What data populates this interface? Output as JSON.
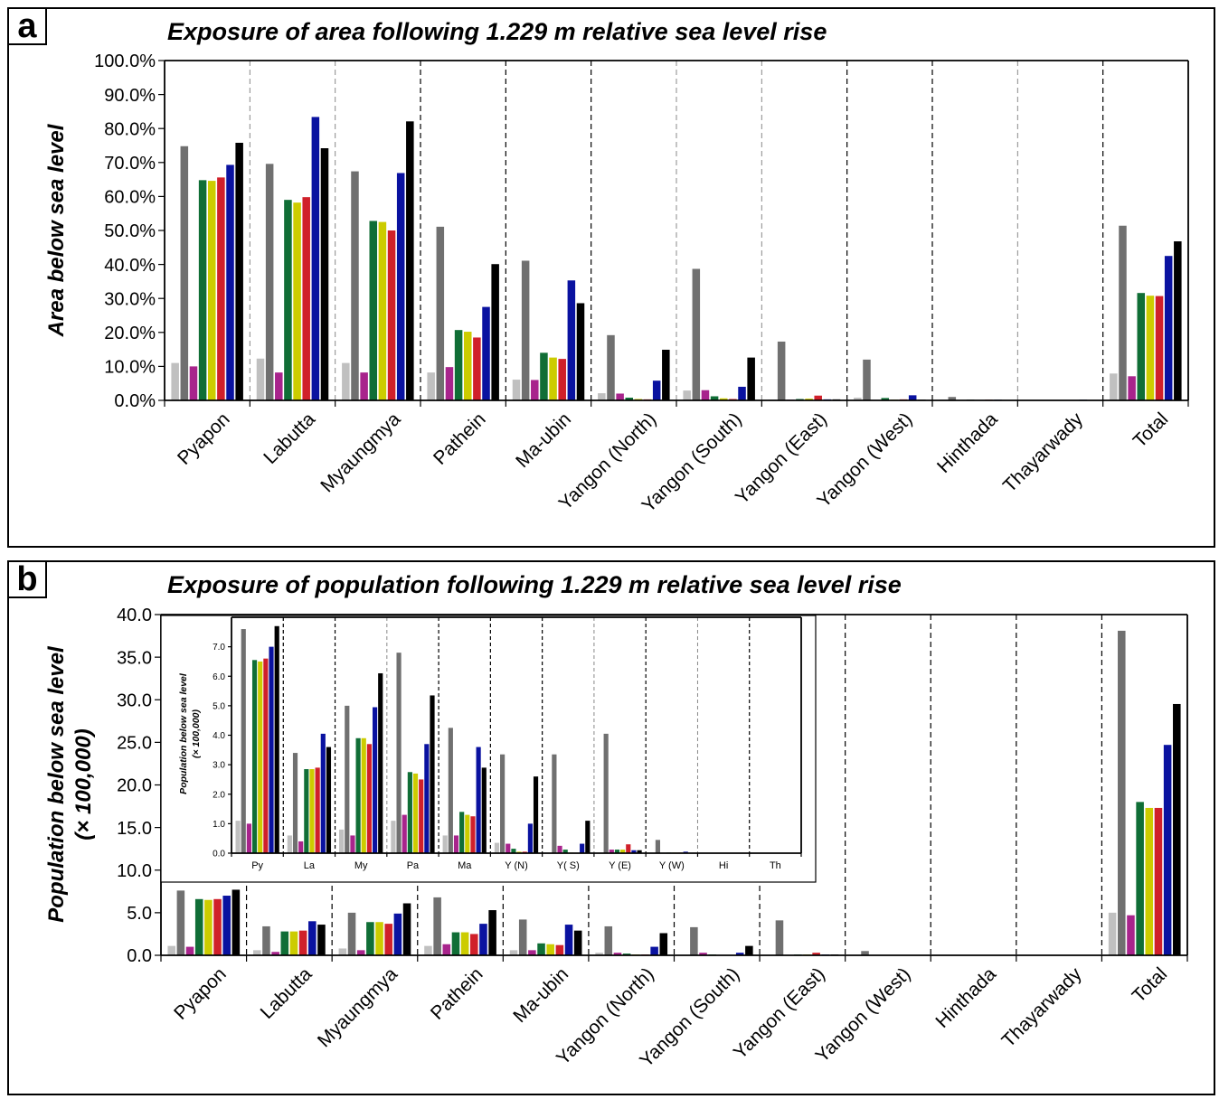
{
  "chart_data": [
    {
      "panel_label": "a",
      "type": "bar",
      "title": "Exposure of area following 1.229 m relative sea level rise",
      "xlabel": "",
      "ylabel": "Area below sea level",
      "ylim": [
        0,
        100
      ],
      "ytick_labels": [
        "0.0%",
        "10.0%",
        "20.0%",
        "30.0%",
        "40.0%",
        "50.0%",
        "60.0%",
        "70.0%",
        "80.0%",
        "90.0%",
        "100.0%"
      ],
      "categories": [
        "Pyapon",
        "Labutta",
        "Myaungmya",
        "Pathein",
        "Ma-ubin",
        "Yangon (North)",
        "Yangon (South)",
        "Yangon (East)",
        "Yangon (West)",
        "Hinthada",
        "Thayarwady",
        "Total"
      ],
      "series": [
        {
          "color": "#c0c0c0",
          "values": [
            11.0,
            12.3,
            11.0,
            8.2,
            6.1,
            2.1,
            2.9,
            0.2,
            0.8,
            0.2,
            0.0,
            7.9
          ]
        },
        {
          "color": "#707070",
          "values": [
            74.8,
            69.6,
            67.4,
            51.1,
            41.1,
            19.2,
            38.7,
            17.3,
            12.0,
            1.0,
            0.1,
            51.4
          ]
        },
        {
          "color": "#a8248c",
          "values": [
            10.0,
            8.2,
            8.2,
            9.8,
            6.0,
            2.0,
            3.0,
            0.2,
            0.0,
            0.0,
            0.0,
            7.1
          ]
        },
        {
          "color": "#106e36",
          "values": [
            64.8,
            59.0,
            52.8,
            20.7,
            14.0,
            0.8,
            1.2,
            0.4,
            0.7,
            0.2,
            0.0,
            31.6
          ]
        },
        {
          "color": "#cccc00",
          "values": [
            64.6,
            58.2,
            52.5,
            20.2,
            12.6,
            0.4,
            0.6,
            0.5,
            0.2,
            0.1,
            0.0,
            30.8
          ]
        },
        {
          "color": "#d0202a",
          "values": [
            65.6,
            59.8,
            50.0,
            18.5,
            12.2,
            0.3,
            0.4,
            1.4,
            0.3,
            0.2,
            0.0,
            30.7
          ]
        },
        {
          "color": "#0a12a0",
          "values": [
            69.3,
            83.4,
            66.9,
            27.5,
            35.3,
            5.8,
            4.0,
            0.3,
            1.5,
            0.2,
            0.2,
            42.5
          ]
        },
        {
          "color": "#000000",
          "values": [
            75.8,
            74.2,
            82.1,
            40.1,
            28.6,
            14.9,
            12.6,
            0.3,
            0.2,
            0.1,
            0.1,
            46.8
          ]
        }
      ]
    },
    {
      "panel_label": "b",
      "type": "bar",
      "title": "Exposure of population following 1.229 m relative sea level rise",
      "xlabel": "",
      "ylabel": "Population below sea level",
      "ylabel2": "(× 100,000)",
      "ylim": [
        0,
        40
      ],
      "ytick_labels": [
        "0.0",
        "5.0",
        "10.0",
        "15.0",
        "20.0",
        "25.0",
        "30.0",
        "35.0",
        "40.0"
      ],
      "categories": [
        "Pyapon",
        "Labutta",
        "Myaungmya",
        "Pathein",
        "Ma-ubin",
        "Yangon (North)",
        "Yangon (South)",
        "Yangon (East)",
        "Yangon (West)",
        "Hinthada",
        "Thayarwady",
        "Total"
      ],
      "series": [
        {
          "color": "#c0c0c0",
          "values": [
            1.1,
            0.6,
            0.8,
            1.1,
            0.6,
            0.3,
            0.0,
            0.0,
            0.0,
            0.0,
            0.0,
            5.0
          ]
        },
        {
          "color": "#707070",
          "values": [
            7.6,
            3.4,
            5.0,
            6.8,
            4.2,
            3.4,
            3.3,
            4.1,
            0.5,
            0.0,
            0.0,
            38.1
          ]
        },
        {
          "color": "#a8248c",
          "values": [
            1.0,
            0.4,
            0.6,
            1.3,
            0.6,
            0.3,
            0.3,
            0.0,
            0.0,
            0.0,
            0.0,
            4.7
          ]
        },
        {
          "color": "#106e36",
          "values": [
            6.6,
            2.8,
            3.9,
            2.7,
            1.4,
            0.2,
            0.1,
            0.1,
            0.0,
            0.0,
            0.0,
            18.0
          ]
        },
        {
          "color": "#cccc00",
          "values": [
            6.5,
            2.8,
            3.9,
            2.7,
            1.3,
            0.1,
            0.0,
            0.1,
            0.0,
            0.0,
            0.0,
            17.3
          ]
        },
        {
          "color": "#d0202a",
          "values": [
            6.6,
            2.9,
            3.7,
            2.5,
            1.2,
            0.1,
            0.0,
            0.3,
            0.0,
            0.0,
            0.0,
            17.3
          ]
        },
        {
          "color": "#0a12a0",
          "values": [
            7.0,
            4.0,
            4.9,
            3.7,
            3.6,
            1.0,
            0.3,
            0.1,
            0.0,
            0.0,
            0.0,
            24.7
          ]
        },
        {
          "color": "#000000",
          "values": [
            7.7,
            3.6,
            6.1,
            5.3,
            2.9,
            2.6,
            1.1,
            0.1,
            0.0,
            0.0,
            0.0,
            29.5
          ]
        }
      ]
    },
    {
      "panel_label": "inset",
      "type": "bar",
      "ylabel": "Population below sea level",
      "ylabel2": "(× 100,000)",
      "ylim": [
        0,
        8
      ],
      "ytick_labels": [
        "0.0",
        "1.0",
        "2.0",
        "3.0",
        "4.0",
        "5.0",
        "6.0",
        "7.0"
      ],
      "categories": [
        "Py",
        "La",
        "My",
        "Pa",
        "Ma",
        "Y (N)",
        "Y( S)",
        "Y (E)",
        "Y (W)",
        "Hi",
        "Th"
      ],
      "series": [
        {
          "color": "#c0c0c0",
          "values": [
            1.1,
            0.6,
            0.8,
            1.1,
            0.6,
            0.35,
            0.0,
            0.0,
            0.0,
            0.0,
            0.0
          ]
        },
        {
          "color": "#707070",
          "values": [
            7.6,
            3.4,
            5.0,
            6.8,
            4.25,
            3.35,
            3.35,
            4.05,
            0.45,
            0.0,
            0.0
          ]
        },
        {
          "color": "#a8248c",
          "values": [
            1.0,
            0.4,
            0.6,
            1.3,
            0.6,
            0.32,
            0.25,
            0.12,
            0.0,
            0.0,
            0.0
          ]
        },
        {
          "color": "#106e36",
          "values": [
            6.55,
            2.85,
            3.9,
            2.75,
            1.4,
            0.15,
            0.12,
            0.12,
            0.02,
            0.0,
            0.0
          ]
        },
        {
          "color": "#cccc00",
          "values": [
            6.5,
            2.85,
            3.9,
            2.7,
            1.3,
            0.05,
            0.02,
            0.12,
            0.02,
            0.0,
            0.0
          ]
        },
        {
          "color": "#d0202a",
          "values": [
            6.6,
            2.9,
            3.7,
            2.5,
            1.25,
            0.05,
            0.0,
            0.3,
            0.02,
            0.0,
            0.0
          ]
        },
        {
          "color": "#0a12a0",
          "values": [
            7.0,
            4.05,
            4.95,
            3.7,
            3.6,
            1.0,
            0.32,
            0.1,
            0.05,
            0.0,
            0.0
          ]
        },
        {
          "color": "#000000",
          "values": [
            7.7,
            3.6,
            6.1,
            5.35,
            2.9,
            2.6,
            1.1,
            0.1,
            0.0,
            0.0,
            0.0
          ]
        }
      ]
    }
  ]
}
